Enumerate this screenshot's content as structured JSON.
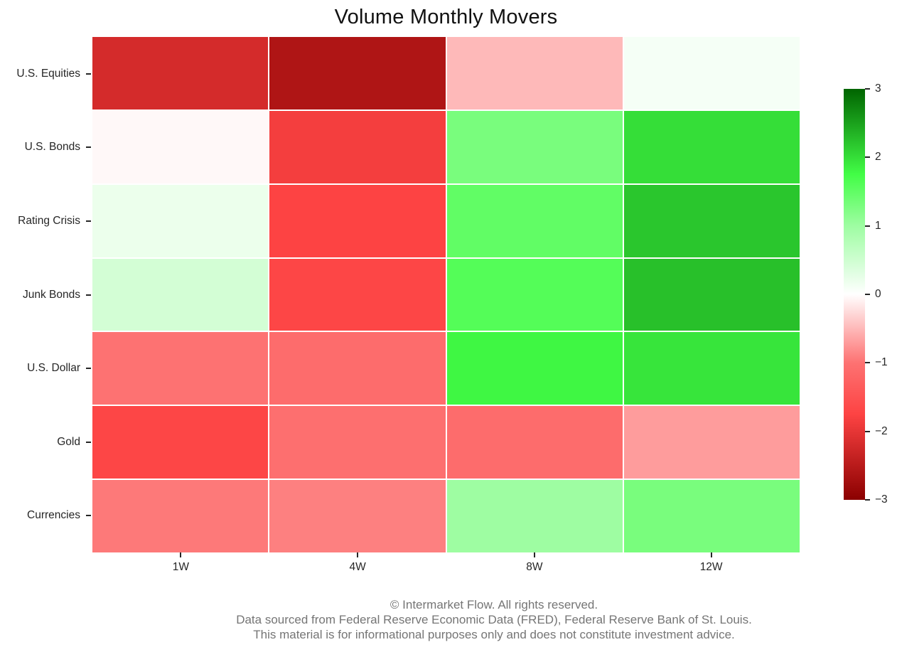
{
  "title": "Volume Monthly Movers",
  "chart_data": {
    "type": "heatmap",
    "title": "Volume Monthly Movers",
    "columns": [
      "1W",
      "4W",
      "8W",
      "12W"
    ],
    "rows": [
      "U.S. Equities",
      "U.S. Bonds",
      "Rating Crisis",
      "Junk Bonds",
      "U.S. Dollar",
      "Gold",
      "Currencies"
    ],
    "values": [
      [
        -2.2,
        -2.6,
        -0.5,
        0.1
      ],
      [
        -0.05,
        -1.85,
        1.3,
        2.0
      ],
      [
        0.2,
        -1.75,
        1.5,
        2.2
      ],
      [
        0.45,
        -1.7,
        1.6,
        2.25
      ],
      [
        -1.0,
        -1.1,
        1.8,
        1.95
      ],
      [
        -1.7,
        -1.05,
        -1.1,
        -0.7
      ],
      [
        -0.95,
        -0.9,
        1.0,
        1.3
      ]
    ],
    "grid": false,
    "legend_position": "colorbar-right",
    "colorbar": {
      "min": -3,
      "max": 3,
      "ticks": [
        "3",
        "2",
        "1",
        "0",
        "−1",
        "−2",
        "−3"
      ],
      "tick_values": [
        3,
        2,
        1,
        0,
        -1,
        -2,
        -3
      ],
      "colormap_stops": [
        {
          "value": -3,
          "color": "#8b0000"
        },
        {
          "value": -1.75,
          "color": "#fd4343"
        },
        {
          "value": -1,
          "color": "#fd7272"
        },
        {
          "value": 0,
          "color": "#ffffff"
        },
        {
          "value": 1,
          "color": "#9efda2"
        },
        {
          "value": 1.75,
          "color": "#42fd46"
        },
        {
          "value": 3,
          "color": "#006400"
        }
      ]
    },
    "cell_gap_color": "#ffffff"
  },
  "footer": {
    "color": "#757575",
    "lines": [
      "© Intermarket Flow. All rights reserved.",
      "Data sourced from Federal Reserve Economic Data (FRED), Federal Reserve Bank of St. Louis.",
      "This material is for informational purposes only and does not constitute investment advice."
    ]
  },
  "axis": {
    "label_color": "#262626",
    "tick_color": "#262626"
  }
}
